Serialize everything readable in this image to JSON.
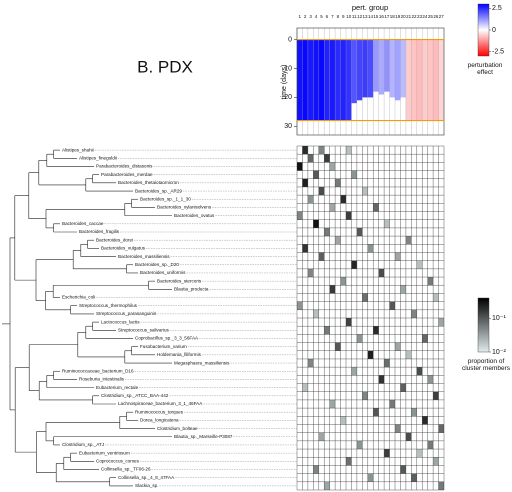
{
  "chart_data": {
    "type": "heatmap",
    "title": "B.   PDX",
    "perturbation": {
      "xlabel": "pert. group",
      "ylabel": "time (days)",
      "pert_groups": [
        1,
        2,
        3,
        4,
        5,
        6,
        7,
        8,
        9,
        10,
        11,
        12,
        13,
        14,
        15,
        16,
        17,
        18,
        19,
        20,
        21,
        22,
        23,
        24,
        25,
        26,
        27
      ],
      "effects": [
        2.8,
        2.9,
        2.7,
        2.8,
        2.9,
        2.6,
        2.7,
        2.5,
        2.6,
        2.4,
        2.0,
        2.2,
        2.3,
        2.1,
        1.2,
        1.0,
        1.3,
        0.9,
        1.1,
        0.8,
        -0.6,
        -0.7,
        -0.8,
        -0.6,
        -0.7,
        -0.8,
        -0.5
      ],
      "start_day": 0,
      "end_days": [
        28,
        28,
        28,
        28,
        28,
        28,
        28,
        28,
        28,
        28,
        22,
        21,
        20,
        20,
        18,
        19,
        18,
        20,
        21,
        20,
        28,
        28,
        28,
        28,
        28,
        28,
        28
      ],
      "window": [
        0,
        28
      ],
      "ylim": [
        -4,
        33
      ],
      "yticks": [
        0,
        10,
        20,
        30
      ],
      "colorbar_label": "perturbation\neffect",
      "clim": [
        -3,
        3
      ],
      "cticks": [
        2.5,
        0,
        -2.5
      ]
    },
    "membership": {
      "leaves": [
        "Alistipes_shahii",
        "Alistipes_finegoldii",
        "Parabacteroides_distasonis",
        "Parabacteroides_merdae",
        "Bacteroides_thetaiotaomicron",
        "Bacteroides_sp._AR29",
        "Bacteroides_sp._1_1_30",
        "Bacteroides_xylanisolvens",
        "Bacteroides_ovatus",
        "Bacteroides_caccae",
        "Bacteroides_fragilis",
        "Bacteroides_dorei",
        "Bacteroides_vulgatus",
        "Bacteroides_massiliensis",
        "Bacteroides_sp._D20",
        "Bacteroides_uniformis",
        "Bacteroides_stercoris",
        "Blautia_producta",
        "Escherichia_coli",
        "Streptococcus_thermophilus",
        "Streptococcus_parasanguinis",
        "Lactococcus_lactis",
        "Streptococcus_salivarius",
        "Coprobacillus_sp._3_3_56FAA",
        "Fusobacterium_varium",
        "Holdemania_filiformis",
        "Megasphaera_massiliensis",
        "Ruminococcaceae_bacterium_D16",
        "Roseburia_intestinalis",
        "Eubacterium_rectale",
        "Clostridium_sp._ATCC_BAA-442",
        "Lachnospiraceae_bacterium_3_1_46FAA",
        "Ruminococcus_torques",
        "Dorea_longicatena",
        "Clostridium_bolteae",
        "Blautia_sp._Marseille-P3087",
        "Clostridium_sp._ATJ",
        "Eubacterium_ventriosum",
        "Coprococcus_comes",
        "Collinsella_sp._TF06-26",
        "Collinsella_sp._4_8_47FAA",
        "Slackia_sp."
      ],
      "cells": [
        [
          0,
          1,
          0.2
        ],
        [
          0,
          4,
          0.05
        ],
        [
          0,
          9,
          0.02
        ],
        [
          1,
          2,
          0.08
        ],
        [
          1,
          5,
          0.15
        ],
        [
          2,
          0,
          0.3
        ],
        [
          2,
          6,
          0.03
        ],
        [
          3,
          3,
          0.1
        ],
        [
          3,
          10,
          0.04
        ],
        [
          4,
          1,
          0.25
        ],
        [
          4,
          7,
          0.06
        ],
        [
          5,
          4,
          0.12
        ],
        [
          5,
          12,
          0.02
        ],
        [
          6,
          2,
          0.04
        ],
        [
          6,
          8,
          0.2
        ],
        [
          7,
          6,
          0.03
        ],
        [
          7,
          14,
          0.08
        ],
        [
          8,
          0,
          0.05
        ],
        [
          8,
          9,
          0.15
        ],
        [
          9,
          3,
          0.3
        ],
        [
          9,
          16,
          0.02
        ],
        [
          10,
          5,
          0.06
        ],
        [
          10,
          11,
          0.1
        ],
        [
          11,
          7,
          0.03
        ],
        [
          11,
          20,
          0.05
        ],
        [
          12,
          1,
          0.18
        ],
        [
          12,
          13,
          0.04
        ],
        [
          13,
          4,
          0.09
        ],
        [
          13,
          18,
          0.03
        ],
        [
          14,
          10,
          0.22
        ],
        [
          14,
          22,
          0.02
        ],
        [
          15,
          2,
          0.05
        ],
        [
          15,
          15,
          0.12
        ],
        [
          16,
          8,
          0.04
        ],
        [
          16,
          24,
          0.06
        ],
        [
          17,
          6,
          0.16
        ],
        [
          17,
          19,
          0.03
        ],
        [
          18,
          12,
          0.07
        ],
        [
          18,
          25,
          0.02
        ],
        [
          19,
          0,
          0.04
        ],
        [
          19,
          17,
          0.1
        ],
        [
          20,
          3,
          0.02
        ],
        [
          20,
          21,
          0.05
        ],
        [
          21,
          9,
          0.14
        ],
        [
          21,
          26,
          0.03
        ],
        [
          22,
          5,
          0.06
        ],
        [
          22,
          14,
          0.2
        ],
        [
          23,
          11,
          0.04
        ],
        [
          23,
          23,
          0.08
        ],
        [
          24,
          7,
          0.1
        ],
        [
          24,
          18,
          0.03
        ],
        [
          25,
          13,
          0.25
        ],
        [
          25,
          20,
          0.02
        ],
        [
          26,
          2,
          0.05
        ],
        [
          26,
          16,
          0.07
        ],
        [
          27,
          10,
          0.03
        ],
        [
          27,
          22,
          0.12
        ],
        [
          28,
          15,
          0.18
        ],
        [
          28,
          24,
          0.04
        ],
        [
          29,
          1,
          0.02
        ],
        [
          29,
          19,
          0.09
        ],
        [
          30,
          12,
          0.05
        ],
        [
          30,
          25,
          0.15
        ],
        [
          31,
          6,
          0.03
        ],
        [
          31,
          17,
          0.06
        ],
        [
          32,
          14,
          0.1
        ],
        [
          32,
          21,
          0.04
        ],
        [
          33,
          8,
          0.02
        ],
        [
          33,
          23,
          0.2
        ],
        [
          34,
          18,
          0.05
        ],
        [
          34,
          26,
          0.08
        ],
        [
          35,
          4,
          0.03
        ],
        [
          35,
          20,
          0.12
        ],
        [
          36,
          11,
          0.04
        ],
        [
          36,
          24,
          0.06
        ],
        [
          37,
          16,
          0.15
        ],
        [
          37,
          22,
          0.02
        ],
        [
          38,
          9,
          0.07
        ],
        [
          38,
          25,
          0.03
        ],
        [
          39,
          3,
          0.05
        ],
        [
          39,
          19,
          0.1
        ],
        [
          40,
          13,
          0.04
        ],
        [
          40,
          21,
          0.09
        ],
        [
          41,
          5,
          0.03
        ],
        [
          41,
          26,
          0.06
        ]
      ],
      "colorbar_label": "proportion of\ncluster members",
      "log": true,
      "clim": [
        0.01,
        0.4
      ],
      "cticks": [
        {
          "value": 0.1,
          "label": "10⁻¹"
        },
        {
          "value": 0.01,
          "label": "10⁻²"
        }
      ]
    }
  }
}
